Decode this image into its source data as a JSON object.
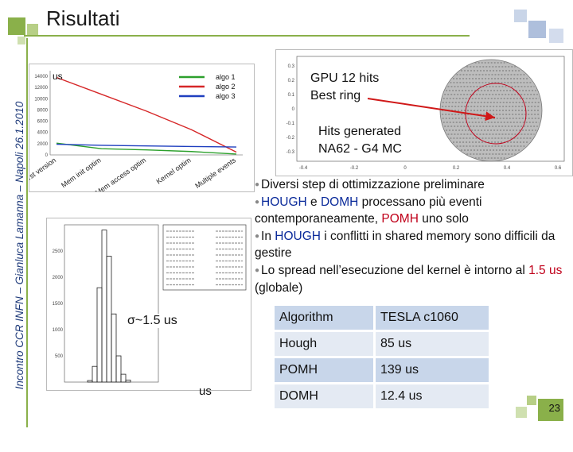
{
  "slide": {
    "title": "Risultati",
    "side_text": "Incontro CCR INFN – Gianluca Lamanna – Napoli 26.1.2010",
    "page_number": "23",
    "accent_color": "#8ab04a"
  },
  "top_chart": {
    "unit_label": "us",
    "legend": [
      "algo 1",
      "algo 2",
      "algo 3"
    ],
    "legend_colors": [
      "#2ca02c",
      "#d62728",
      "#1f3fbf"
    ],
    "y_ticks": [
      "14000",
      "12000",
      "10000",
      "8000",
      "6000",
      "4000",
      "2000",
      "0"
    ],
    "x_labels": [
      "First version",
      "Mem init optim",
      "Mem access optim",
      "Kernel optim",
      "Multiple events"
    ],
    "chart_data": {
      "type": "line",
      "ylim": [
        0,
        15000
      ],
      "categories": [
        "First version",
        "Mem init optim",
        "Mem access optim",
        "Kernel optim",
        "Multiple events"
      ],
      "series": [
        {
          "name": "algo 1",
          "values": [
            2100,
            1100,
            900,
            600,
            150
          ]
        },
        {
          "name": "algo 2",
          "values": [
            13800,
            10800,
            7800,
            4500,
            500
          ]
        },
        {
          "name": "algo 3",
          "values": [
            1900,
            1700,
            1600,
            1500,
            1400
          ]
        }
      ]
    }
  },
  "ring_plot": {
    "x_ticks": [
      "-0.4",
      "-0.2",
      "0",
      "0.2",
      "0.4",
      "0.6"
    ],
    "y_ticks": [
      "0.3",
      "0.2",
      "0.1",
      "0",
      "-0.1",
      "-0.2",
      "-0.3"
    ],
    "label_gpu": "GPU 12 hits",
    "label_best": "Best ring",
    "label_hits1": "Hits generated",
    "label_hits2": "NA62 - G4 MC"
  },
  "histogram": {
    "sigma_label": "σ~1.5 us",
    "unit_label": "us",
    "y_ticks": [
      "2500",
      "2000",
      "1500",
      "1000",
      "500"
    ],
    "chart_data": {
      "type": "bar",
      "x": [
        11.5,
        12.0,
        12.5,
        13.0,
        13.5,
        14.0,
        14.5,
        15.0,
        15.5
      ],
      "values": [
        30,
        300,
        1800,
        2900,
        2400,
        1300,
        500,
        150,
        40
      ]
    }
  },
  "bullets": [
    {
      "parts": [
        {
          "t": "Diversi step di ottimizzazione preliminare",
          "c": ""
        }
      ]
    },
    {
      "parts": [
        {
          "t": "HOUGH",
          "c": "blue"
        },
        {
          "t": " e ",
          "c": ""
        },
        {
          "t": "DOMH",
          "c": "blue"
        },
        {
          "t": " processano più eventi contemporaneamente, ",
          "c": ""
        },
        {
          "t": "POMH",
          "c": "red"
        },
        {
          "t": " uno solo",
          "c": ""
        }
      ]
    },
    {
      "parts": [
        {
          "t": "In ",
          "c": ""
        },
        {
          "t": "HOUGH",
          "c": "blue"
        },
        {
          "t": " i conflitti in shared memory sono difficili da gestire",
          "c": ""
        }
      ]
    },
    {
      "parts": [
        {
          "t": "Lo spread nell’esecuzione del kernel è intorno al ",
          "c": ""
        },
        {
          "t": "1.5 us",
          "c": "red"
        },
        {
          "t": " (globale)",
          "c": ""
        }
      ]
    }
  ],
  "table": {
    "headers": [
      "Algorithm",
      "TESLA c1060"
    ],
    "rows": [
      [
        "Hough",
        "85 us"
      ],
      [
        "POMH",
        "139 us"
      ],
      [
        "DOMH",
        "12.4 us"
      ]
    ]
  }
}
